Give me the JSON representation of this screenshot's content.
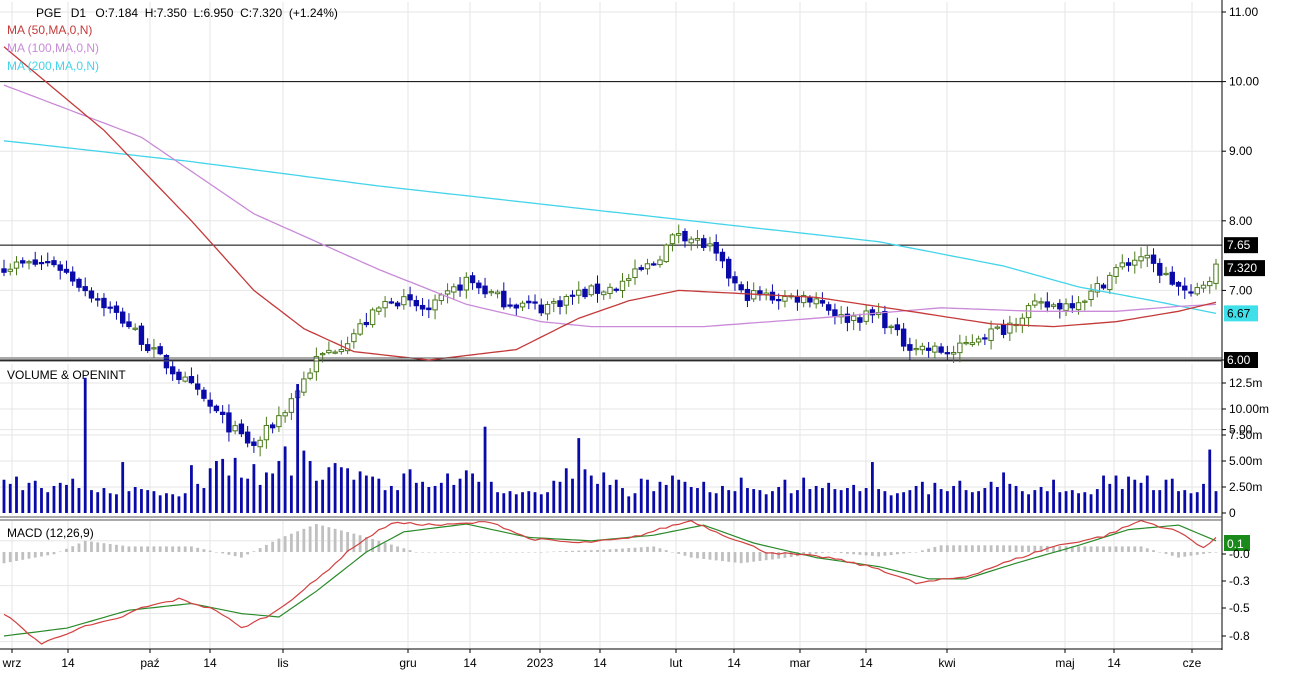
{
  "header": {
    "symbol": "PGE",
    "timeframe": "D1",
    "ohlc": "O:7.184  H:7.350  L:6.950  C:7.320  (+1.24%)"
  },
  "indicators": {
    "ma50": {
      "label": "MA (50,MA,0,N)",
      "color": "#c43a3a"
    },
    "ma100": {
      "label": "MA (100,MA,0,N)",
      "color": "#c98ad8"
    },
    "ma200": {
      "label": "MA (200,MA,0,N)",
      "color": "#44d4ea"
    }
  },
  "panels": {
    "volume_title": "VOLUME & OPENINT",
    "macd_title": "MACD (12,26,9)"
  },
  "colors": {
    "bull": "#4a7a1a",
    "bear": "#0a0aa8",
    "volume": "#0a0aa8",
    "macd": "#d24040",
    "signal": "#2a8a2a",
    "hist": "#c0c0c0",
    "grid": "#e6e6e6"
  },
  "chart_data": [
    {
      "type": "candlestick",
      "title": "PGE D1",
      "y_ticks": [
        "11.00",
        "10.00",
        "9.00",
        "8.00",
        "7.00",
        "6.00",
        "5.00"
      ],
      "ylim": [
        4.0,
        11.2
      ],
      "x_ticks": [
        "wrz",
        "14",
        "paź",
        "14",
        "lis",
        "gru",
        "14",
        "2023",
        "14",
        "lut",
        "14",
        "mar",
        "14",
        "kwi",
        "maj",
        "14",
        "cze"
      ],
      "horizontal_levels": [
        10.0,
        7.65,
        6.0
      ],
      "price_labels": [
        {
          "label": "7.65",
          "value": 7.65,
          "bg": "#000000",
          "fg": "#ffffff"
        },
        {
          "label": "7.320",
          "value": 7.32,
          "bg": "#000000",
          "fg": "#ffffff"
        },
        {
          "label": "6.67",
          "value": 6.67,
          "bg": "#3fe0ea",
          "fg": "#000000"
        },
        {
          "label": "6.00",
          "value": 6.0,
          "bg": "#000000",
          "fg": "#ffffff"
        }
      ],
      "close_anchors": [
        [
          0,
          7.35
        ],
        [
          8,
          7.4
        ],
        [
          14,
          6.95
        ],
        [
          20,
          6.5
        ],
        [
          24,
          6.1
        ],
        [
          30,
          5.6
        ],
        [
          36,
          5.05
        ],
        [
          40,
          4.75
        ],
        [
          45,
          5.3
        ],
        [
          50,
          6.0
        ],
        [
          55,
          6.3
        ],
        [
          62,
          6.9
        ],
        [
          68,
          6.7
        ],
        [
          74,
          7.15
        ],
        [
          80,
          6.85
        ],
        [
          86,
          6.75
        ],
        [
          92,
          6.95
        ],
        [
          98,
          7.05
        ],
        [
          104,
          7.4
        ],
        [
          108,
          7.85
        ],
        [
          113,
          7.6
        ],
        [
          118,
          6.95
        ],
        [
          124,
          6.9
        ],
        [
          130,
          6.9
        ],
        [
          134,
          6.6
        ],
        [
          140,
          6.65
        ],
        [
          144,
          6.25
        ],
        [
          148,
          6.15
        ],
        [
          152,
          6.1
        ],
        [
          156,
          6.35
        ],
        [
          160,
          6.45
        ],
        [
          164,
          6.75
        ],
        [
          170,
          6.8
        ],
        [
          174,
          6.95
        ],
        [
          178,
          7.3
        ],
        [
          182,
          7.5
        ],
        [
          186,
          7.2
        ],
        [
          190,
          6.9
        ],
        [
          194,
          7.32
        ]
      ],
      "ma50_anchors": [
        [
          0,
          10.5
        ],
        [
          16,
          9.3
        ],
        [
          30,
          8.0
        ],
        [
          40,
          7.0
        ],
        [
          48,
          6.45
        ],
        [
          56,
          6.12
        ],
        [
          68,
          6.0
        ],
        [
          82,
          6.15
        ],
        [
          92,
          6.6
        ],
        [
          100,
          6.85
        ],
        [
          108,
          7.0
        ],
        [
          130,
          6.9
        ],
        [
          145,
          6.7
        ],
        [
          158,
          6.52
        ],
        [
          168,
          6.48
        ],
        [
          178,
          6.55
        ],
        [
          188,
          6.7
        ],
        [
          194,
          6.83
        ]
      ],
      "ma100_anchors": [
        [
          0,
          9.95
        ],
        [
          22,
          9.2
        ],
        [
          40,
          8.1
        ],
        [
          60,
          7.3
        ],
        [
          74,
          6.8
        ],
        [
          86,
          6.55
        ],
        [
          94,
          6.48
        ],
        [
          112,
          6.48
        ],
        [
          130,
          6.6
        ],
        [
          150,
          6.75
        ],
        [
          165,
          6.7
        ],
        [
          178,
          6.7
        ],
        [
          188,
          6.77
        ],
        [
          194,
          6.8
        ]
      ],
      "ma200_anchors": [
        [
          0,
          9.15
        ],
        [
          30,
          8.85
        ],
        [
          60,
          8.5
        ],
        [
          90,
          8.2
        ],
        [
          120,
          7.9
        ],
        [
          140,
          7.7
        ],
        [
          160,
          7.35
        ],
        [
          172,
          7.05
        ],
        [
          184,
          6.85
        ],
        [
          194,
          6.67
        ]
      ]
    },
    {
      "type": "bar",
      "title": "VOLUME & OPENINT",
      "y_ticks": [
        "12.5m",
        "10.00m",
        "7.50m",
        "5.00m",
        "2.50m",
        "0"
      ],
      "ylim": [
        0,
        13
      ],
      "values_m": [
        3.2,
        2.8,
        3.5,
        2.2,
        2.9,
        3.1,
        2.4,
        2.0,
        2.6,
        2.9,
        2.7,
        3.3,
        2.4,
        13.0,
        2.2,
        2.0,
        2.4,
        1.9,
        1.8,
        4.9,
        2.1,
        2.5,
        2.3,
        2.2,
        2.1,
        1.7,
        1.9,
        1.8,
        1.6,
        1.9,
        4.6,
        2.8,
        2.4,
        4.3,
        5.0,
        5.2,
        3.6,
        5.3,
        3.4,
        3.3,
        4.7,
        2.7,
        3.9,
        3.8,
        5.0,
        6.4,
        3.6,
        12.4,
        6.0,
        5.0,
        3.1,
        3.2,
        4.4,
        4.8,
        4.4,
        4.3,
        3.2,
        4.0,
        3.6,
        3.5,
        3.3,
        2.2,
        2.6,
        2.2,
        3.8,
        4.2,
        2.9,
        3.0,
        2.5,
        2.6,
        2.9,
        3.8,
        2.7,
        3.3,
        4.1,
        3.8,
        3.0,
        8.3,
        3.0,
        2.0,
        1.9,
        2.1,
        1.8,
        2.0,
        2.1,
        2.0,
        1.8,
        2.0,
        3.1,
        3.0,
        4.3,
        3.3,
        7.2,
        4.2,
        3.6,
        2.8,
        3.9,
        2.7,
        3.2,
        2.4,
        1.6,
        1.9,
        3.3,
        3.2,
        2.1,
        3.0,
        2.7,
        3.6,
        3.2,
        3.0,
        2.5,
        2.4,
        3.0,
        2.0,
        1.9,
        2.6,
        2.2,
        2.1,
        3.4,
        2.4,
        2.3,
        2.2,
        1.8,
        2.1,
        2.5,
        3.2,
        1.9,
        2.2,
        3.4,
        2.3,
        2.6,
        2.4,
        2.9,
        2.3,
        2.2,
        2.4,
        2.7,
        2.1,
        2.4,
        4.9,
        2.3,
        2.1,
        1.7,
        1.9,
        2.0,
        2.2,
        2.6,
        3.0,
        1.8,
        2.9,
        2.3,
        2.1,
        2.6,
        3.1,
        2.2,
        2.0,
        2.1,
        2.4,
        3.0,
        2.5,
        3.9,
        2.8,
        2.6,
        2.1,
        1.8,
        2.2,
        2.5,
        2.1,
        3.2,
        2.0,
        2.1,
        2.2,
        1.9,
        2.0,
        1.8,
        2.3,
        3.6,
        2.8,
        3.6,
        2.3,
        3.5,
        3.2,
        2.9,
        3.6,
        2.2,
        2.2,
        3.2,
        3.3,
        2.1,
        2.2,
        1.9,
        2.0,
        2.8,
        6.1,
        2.1,
        3.0,
        2.6,
        4.7
      ]
    },
    {
      "type": "line",
      "title": "MACD (12,26,9)",
      "y_ticks": [
        "0.1",
        "-0.0",
        "-0.3",
        "-0.5",
        "-0.8"
      ],
      "ylim": [
        -0.95,
        0.35
      ],
      "series": [
        {
          "name": "MACD",
          "anchors": [
            [
              0,
              -0.55
            ],
            [
              6,
              -0.82
            ],
            [
              12,
              -0.68
            ],
            [
              18,
              -0.6
            ],
            [
              22,
              -0.5
            ],
            [
              28,
              -0.42
            ],
            [
              34,
              -0.52
            ],
            [
              38,
              -0.68
            ],
            [
              43,
              -0.55
            ],
            [
              50,
              -0.25
            ],
            [
              56,
              0.05
            ],
            [
              62,
              0.26
            ],
            [
              70,
              0.24
            ],
            [
              78,
              0.27
            ],
            [
              84,
              0.12
            ],
            [
              92,
              0.08
            ],
            [
              100,
              0.12
            ],
            [
              106,
              0.22
            ],
            [
              110,
              0.28
            ],
            [
              114,
              0.18
            ],
            [
              122,
              0.0
            ],
            [
              132,
              -0.05
            ],
            [
              140,
              -0.15
            ],
            [
              146,
              -0.28
            ],
            [
              154,
              -0.22
            ],
            [
              160,
              -0.1
            ],
            [
              168,
              0.05
            ],
            [
              176,
              0.14
            ],
            [
              182,
              0.28
            ],
            [
              188,
              0.18
            ],
            [
              192,
              0.04
            ],
            [
              194,
              0.12
            ]
          ]
        },
        {
          "name": "Signal",
          "anchors": [
            [
              0,
              -0.75
            ],
            [
              10,
              -0.68
            ],
            [
              20,
              -0.52
            ],
            [
              30,
              -0.46
            ],
            [
              38,
              -0.55
            ],
            [
              44,
              -0.58
            ],
            [
              50,
              -0.35
            ],
            [
              58,
              0.0
            ],
            [
              64,
              0.18
            ],
            [
              74,
              0.25
            ],
            [
              84,
              0.13
            ],
            [
              94,
              0.1
            ],
            [
              104,
              0.15
            ],
            [
              112,
              0.24
            ],
            [
              120,
              0.08
            ],
            [
              130,
              -0.05
            ],
            [
              140,
              -0.13
            ],
            [
              148,
              -0.24
            ],
            [
              154,
              -0.24
            ],
            [
              162,
              -0.1
            ],
            [
              172,
              0.06
            ],
            [
              180,
              0.2
            ],
            [
              188,
              0.24
            ],
            [
              194,
              0.1
            ]
          ]
        }
      ],
      "hist_anchors": [
        [
          0,
          -0.1
        ],
        [
          8,
          -0.02
        ],
        [
          13,
          0.1
        ],
        [
          20,
          0.05
        ],
        [
          30,
          0.05
        ],
        [
          38,
          -0.05
        ],
        [
          44,
          0.12
        ],
        [
          50,
          0.25
        ],
        [
          57,
          0.15
        ],
        [
          66,
          0.0
        ],
        [
          76,
          0.0
        ],
        [
          86,
          0.0
        ],
        [
          96,
          0.02
        ],
        [
          104,
          0.05
        ],
        [
          110,
          -0.05
        ],
        [
          118,
          -0.1
        ],
        [
          124,
          -0.06
        ],
        [
          132,
          0.0
        ],
        [
          140,
          -0.04
        ],
        [
          146,
          0.0
        ],
        [
          150,
          0.06
        ],
        [
          160,
          0.06
        ],
        [
          172,
          0.05
        ],
        [
          182,
          0.05
        ],
        [
          188,
          -0.05
        ],
        [
          194,
          0.0
        ]
      ]
    }
  ]
}
